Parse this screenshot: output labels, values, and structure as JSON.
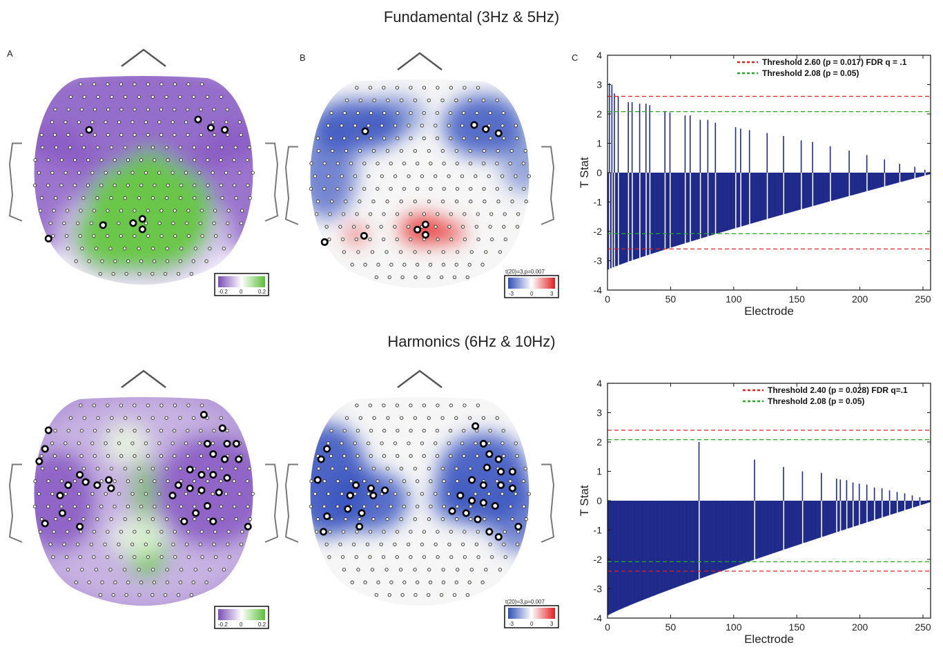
{
  "titles": {
    "top": "Fundamental (3Hz & 5Hz)",
    "bottom": "Harmonics (6Hz & 10Hz)"
  },
  "panel_letters": {
    "a": "A",
    "b": "B",
    "c": "C"
  },
  "colorbars": {
    "green": {
      "min_label": "-0.2",
      "mid_label": "0",
      "max_label": "0.2",
      "low_color": "#7b4db5",
      "high_color": "#5bbf3a"
    },
    "red": {
      "title": "t(20)=3,p=0.007",
      "min_label": "-3",
      "mid_label": "0",
      "max_label": "3",
      "low_color": "#2f4fb5",
      "high_color": "#e02020"
    }
  },
  "colors": {
    "bar": "#1f2a8a",
    "threshold_fdr": "#e02020",
    "threshold_p05": "#22aa22",
    "purple": "#8a5cc4",
    "green": "#6cc64a",
    "blue": "#3a55c0",
    "red": "#e83a3a"
  },
  "chart_data": [
    {
      "type": "bar",
      "panel": "C top",
      "xlabel": "Electrode",
      "ylabel": "T Stat",
      "xlim": [
        0,
        256
      ],
      "ylim": [
        -4,
        4
      ],
      "xticks": [
        "0",
        "50",
        "100",
        "150",
        "200",
        "250"
      ],
      "yticks": [
        "4",
        "3",
        "2",
        "1",
        "0",
        "-1",
        "-2",
        "-3",
        "-4"
      ],
      "n_electrodes": 256,
      "sorted_by_magnitude": true,
      "abs_max": 3.3,
      "abs_min": 0.05,
      "positive_spikes": [
        {
          "x": 2,
          "value": 3.05
        },
        {
          "x": 4,
          "value": 3.0
        },
        {
          "x": 6,
          "value": 2.7
        },
        {
          "x": 9,
          "value": 2.6
        },
        {
          "x": 17,
          "value": 2.4
        },
        {
          "x": 20,
          "value": 2.4
        },
        {
          "x": 26,
          "value": 2.35
        },
        {
          "x": 31,
          "value": 2.35
        },
        {
          "x": 34,
          "value": 2.3
        },
        {
          "x": 46,
          "value": 2.1
        },
        {
          "x": 50,
          "value": 2.05
        },
        {
          "x": 62,
          "value": 1.95
        },
        {
          "x": 66,
          "value": 1.95
        },
        {
          "x": 74,
          "value": 1.8
        },
        {
          "x": 80,
          "value": 1.8
        },
        {
          "x": 86,
          "value": 1.7
        },
        {
          "x": 102,
          "value": 1.55
        },
        {
          "x": 106,
          "value": 1.5
        },
        {
          "x": 113,
          "value": 1.45
        },
        {
          "x": 127,
          "value": 1.35
        },
        {
          "x": 140,
          "value": 1.25
        },
        {
          "x": 154,
          "value": 1.1
        },
        {
          "x": 163,
          "value": 1.05
        },
        {
          "x": 177,
          "value": 0.9
        },
        {
          "x": 192,
          "value": 0.75
        },
        {
          "x": 206,
          "value": 0.6
        },
        {
          "x": 220,
          "value": 0.45
        },
        {
          "x": 232,
          "value": 0.3
        },
        {
          "x": 244,
          "value": 0.2
        },
        {
          "x": 252,
          "value": 0.1
        }
      ],
      "thresholds": [
        {
          "name": "Threshold 2.60 (p = 0.017) FDR q = .1",
          "value": 2.6,
          "color": "#e02020"
        },
        {
          "name": "Threshold 2.08 (p = 0.05)",
          "value": 2.08,
          "color": "#22aa22"
        }
      ]
    },
    {
      "type": "bar",
      "panel": "C bottom",
      "xlabel": "Electrode",
      "ylabel": "T Stat",
      "xlim": [
        0,
        256
      ],
      "ylim": [
        -4,
        4
      ],
      "xticks": [
        "0",
        "50",
        "100",
        "150",
        "200",
        "250"
      ],
      "yticks": [
        "4",
        "3",
        "2",
        "1",
        "0",
        "-1",
        "-2",
        "-3",
        "-4"
      ],
      "n_electrodes": 256,
      "sorted_by_magnitude": true,
      "abs_max": 3.9,
      "abs_min": 0.05,
      "positive_spikes": [
        {
          "x": 73,
          "value": 2.0
        },
        {
          "x": 117,
          "value": 1.4
        },
        {
          "x": 140,
          "value": 1.15
        },
        {
          "x": 155,
          "value": 1.0
        },
        {
          "x": 170,
          "value": 0.95
        },
        {
          "x": 182,
          "value": 0.75
        },
        {
          "x": 185,
          "value": 0.72
        },
        {
          "x": 190,
          "value": 0.7
        },
        {
          "x": 195,
          "value": 0.62
        },
        {
          "x": 200,
          "value": 0.58
        },
        {
          "x": 206,
          "value": 0.55
        },
        {
          "x": 212,
          "value": 0.45
        },
        {
          "x": 218,
          "value": 0.42
        },
        {
          "x": 224,
          "value": 0.35
        },
        {
          "x": 230,
          "value": 0.3
        },
        {
          "x": 236,
          "value": 0.25
        },
        {
          "x": 242,
          "value": 0.18
        },
        {
          "x": 248,
          "value": 0.12
        }
      ],
      "thresholds": [
        {
          "name": "Threshold 2.40 (p = 0.028) FDR q=.1",
          "value": 2.4,
          "color": "#e02020"
        },
        {
          "name": "Threshold 2.08 (p = 0.05)",
          "value": 2.08,
          "color": "#22aa22"
        }
      ]
    }
  ]
}
